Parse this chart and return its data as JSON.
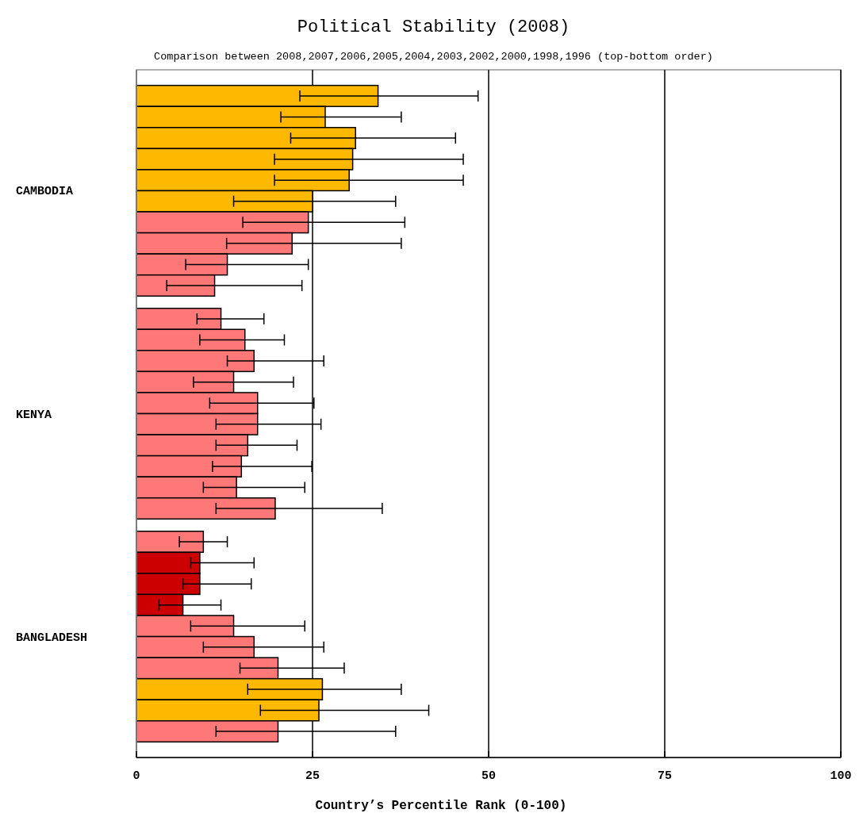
{
  "chart_data": {
    "type": "bar",
    "orientation": "horizontal",
    "title": "Political Stability (2008)",
    "subtitle": "Comparison between 2008,2007,2006,2005,2004,2003,2002,2000,1998,1996 (top-bottom order)",
    "xlabel": "Country’s Percentile Rank (0-100)",
    "categories": [
      "CAMBODIA",
      "KENYA",
      "BANGLADESH"
    ],
    "series": [
      {
        "values": [
          34.3,
          12.0,
          9.5
        ],
        "colors": [
          "#ffb800",
          "#ff7878",
          "#ff7878"
        ],
        "errors": [
          [
            23.2,
            48.5
          ],
          [
            8.6,
            18.1
          ],
          [
            6.1,
            12.9
          ]
        ]
      },
      {
        "values": [
          26.8,
          15.4,
          9.0
        ],
        "colors": [
          "#ffb800",
          "#ff7878",
          "#cc0000"
        ],
        "errors": [
          [
            20.5,
            37.6
          ],
          [
            9.0,
            21.0
          ],
          [
            7.7,
            16.7
          ]
        ]
      },
      {
        "values": [
          31.1,
          16.7,
          9.0
        ],
        "colors": [
          "#ffb800",
          "#ff7878",
          "#cc0000"
        ],
        "errors": [
          [
            21.9,
            45.3
          ],
          [
            12.9,
            26.6
          ],
          [
            6.6,
            16.3
          ]
        ]
      },
      {
        "values": [
          30.7,
          13.8,
          6.6
        ],
        "colors": [
          "#ffb800",
          "#ff7878",
          "#cc0000"
        ],
        "errors": [
          [
            19.6,
            46.4
          ],
          [
            8.1,
            22.3
          ],
          [
            3.2,
            12.0
          ]
        ]
      },
      {
        "values": [
          30.2,
          17.2,
          13.8
        ],
        "colors": [
          "#ffb800",
          "#ff7878",
          "#ff7878"
        ],
        "errors": [
          [
            19.6,
            46.4
          ],
          [
            10.4,
            25.2
          ],
          [
            7.7,
            23.9
          ]
        ]
      },
      {
        "values": [
          25.0,
          17.2,
          16.7
        ],
        "colors": [
          "#ffb800",
          "#ff7878",
          "#ff7878"
        ],
        "errors": [
          [
            13.8,
            36.8
          ],
          [
            11.3,
            26.2
          ],
          [
            9.5,
            26.6
          ]
        ]
      },
      {
        "values": [
          24.4,
          15.8,
          20.1
        ],
        "colors": [
          "#ff7878",
          "#ff7878",
          "#ff7878"
        ],
        "errors": [
          [
            15.1,
            38.1
          ],
          [
            11.3,
            22.8
          ],
          [
            14.7,
            29.5
          ]
        ]
      },
      {
        "values": [
          22.1,
          14.9,
          26.4
        ],
        "colors": [
          "#ff7878",
          "#ff7878",
          "#ffb800"
        ],
        "errors": [
          [
            12.8,
            37.6
          ],
          [
            10.8,
            24.9
          ],
          [
            15.8,
            37.6
          ]
        ]
      },
      {
        "values": [
          12.9,
          14.2,
          25.9
        ],
        "colors": [
          "#ff7878",
          "#ff7878",
          "#ffb800"
        ],
        "errors": [
          [
            7.0,
            24.4
          ],
          [
            9.5,
            23.9
          ],
          [
            17.6,
            41.5
          ]
        ]
      },
      {
        "values": [
          11.1,
          19.7,
          20.1
        ],
        "colors": [
          "#ff7878",
          "#ff7878",
          "#ff7878"
        ],
        "errors": [
          [
            4.3,
            23.5
          ],
          [
            11.3,
            34.9
          ],
          [
            11.3,
            36.8
          ]
        ]
      }
    ],
    "xlim": [
      0,
      100
    ],
    "xticks": [
      0,
      25,
      50,
      75,
      100
    ],
    "grid": "x"
  }
}
